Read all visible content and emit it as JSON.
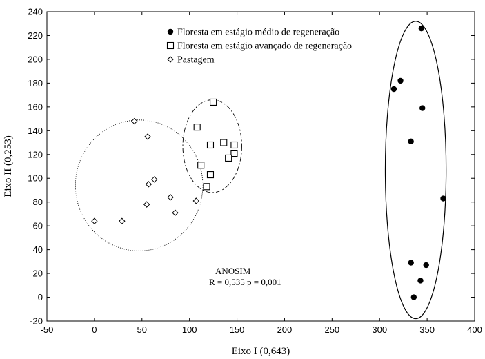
{
  "chart_data": {
    "type": "scatter",
    "xlabel": "Eixo I (0,643)",
    "ylabel": "Eixo II (0,253)",
    "xlim": [
      -50,
      400
    ],
    "ylim": [
      -20,
      240
    ],
    "xticks": [
      -50,
      0,
      50,
      100,
      150,
      200,
      250,
      300,
      350,
      400
    ],
    "yticks": [
      -20,
      0,
      20,
      40,
      60,
      80,
      100,
      120,
      140,
      160,
      180,
      200,
      220,
      240
    ],
    "legend_position": "top-center",
    "series": [
      {
        "name": "Floresta em estágio médio de regeneração",
        "marker": "filled-circle",
        "color": "#000000",
        "points": [
          [
            344,
            226
          ],
          [
            322,
            182
          ],
          [
            315,
            175
          ],
          [
            345,
            159
          ],
          [
            333,
            131
          ],
          [
            367,
            83
          ],
          [
            333,
            29
          ],
          [
            349,
            27
          ],
          [
            343,
            14
          ],
          [
            336,
            0
          ]
        ]
      },
      {
        "name": "Floresta em estágio avançado de regeneração",
        "marker": "open-square",
        "color": "#000000",
        "points": [
          [
            125,
            164
          ],
          [
            108,
            143
          ],
          [
            136,
            130
          ],
          [
            122,
            128
          ],
          [
            147,
            128
          ],
          [
            147,
            121
          ],
          [
            141,
            117
          ],
          [
            112,
            111
          ],
          [
            122,
            103
          ],
          [
            118,
            93
          ]
        ]
      },
      {
        "name": "Pastagem",
        "marker": "open-diamond",
        "color": "#000000",
        "points": [
          [
            42,
            148
          ],
          [
            56,
            135
          ],
          [
            63,
            99
          ],
          [
            57,
            95
          ],
          [
            80,
            84
          ],
          [
            107,
            81
          ],
          [
            55,
            78
          ],
          [
            85,
            71
          ],
          [
            0,
            64
          ],
          [
            29,
            64
          ]
        ]
      }
    ],
    "ellipses": [
      {
        "style": "solid",
        "cx": 338,
        "cy": 107,
        "rx": 32,
        "ry": 125
      },
      {
        "style": "dash-dot",
        "cx": 124,
        "cy": 127,
        "rx": 31,
        "ry": 39
      },
      {
        "style": "dotted",
        "cx": 47,
        "cy": 94,
        "rx": 67,
        "ry": 55
      }
    ],
    "annotations": [
      {
        "text": "ANOSIM",
        "x": 150,
        "y": 20
      },
      {
        "text": "R = 0,535 p = 0,001",
        "x": 132,
        "y": 10
      }
    ]
  }
}
